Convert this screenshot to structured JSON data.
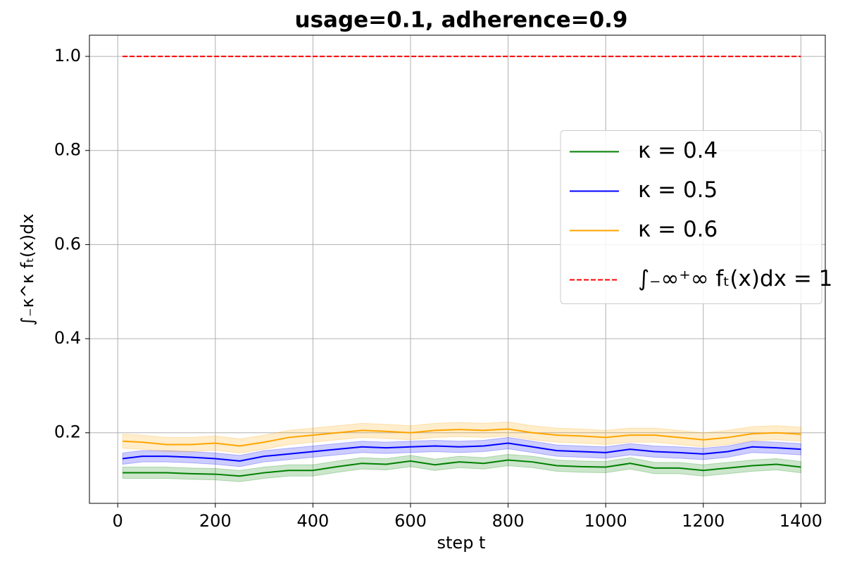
{
  "chart_data": {
    "type": "line",
    "title": "usage=0.1, adherence=0.9",
    "xlabel": "step t",
    "ylabel": "∫₋κ^κ fₜ(x)dx",
    "x": [
      10,
      50,
      100,
      150,
      200,
      250,
      300,
      350,
      400,
      450,
      500,
      550,
      600,
      650,
      700,
      750,
      800,
      850,
      900,
      950,
      1000,
      1050,
      1100,
      1150,
      1200,
      1250,
      1300,
      1350,
      1400
    ],
    "series": [
      {
        "name": "κ = 0.4",
        "color": "green",
        "values": [
          0.115,
          0.115,
          0.115,
          0.113,
          0.112,
          0.108,
          0.115,
          0.12,
          0.12,
          0.128,
          0.135,
          0.133,
          0.14,
          0.132,
          0.138,
          0.135,
          0.142,
          0.138,
          0.13,
          0.128,
          0.127,
          0.135,
          0.125,
          0.125,
          0.12,
          0.125,
          0.13,
          0.133,
          0.127
        ],
        "upper": [
          0.127,
          0.127,
          0.127,
          0.125,
          0.124,
          0.12,
          0.127,
          0.132,
          0.132,
          0.14,
          0.147,
          0.145,
          0.152,
          0.144,
          0.15,
          0.147,
          0.154,
          0.15,
          0.142,
          0.14,
          0.139,
          0.147,
          0.137,
          0.137,
          0.132,
          0.137,
          0.142,
          0.145,
          0.139
        ],
        "lower": [
          0.103,
          0.103,
          0.103,
          0.101,
          0.1,
          0.096,
          0.103,
          0.108,
          0.108,
          0.116,
          0.123,
          0.121,
          0.128,
          0.12,
          0.126,
          0.123,
          0.13,
          0.126,
          0.118,
          0.116,
          0.115,
          0.123,
          0.113,
          0.113,
          0.108,
          0.113,
          0.118,
          0.121,
          0.115
        ]
      },
      {
        "name": "κ = 0.5",
        "color": "blue",
        "values": [
          0.145,
          0.15,
          0.15,
          0.148,
          0.145,
          0.14,
          0.15,
          0.155,
          0.16,
          0.165,
          0.17,
          0.168,
          0.17,
          0.172,
          0.17,
          0.172,
          0.178,
          0.17,
          0.162,
          0.16,
          0.158,
          0.165,
          0.16,
          0.158,
          0.155,
          0.16,
          0.17,
          0.168,
          0.165
        ],
        "upper": [
          0.157,
          0.162,
          0.162,
          0.16,
          0.157,
          0.152,
          0.162,
          0.167,
          0.172,
          0.177,
          0.182,
          0.18,
          0.182,
          0.184,
          0.182,
          0.184,
          0.19,
          0.182,
          0.174,
          0.172,
          0.17,
          0.177,
          0.172,
          0.17,
          0.167,
          0.172,
          0.182,
          0.18,
          0.177
        ],
        "lower": [
          0.133,
          0.138,
          0.138,
          0.136,
          0.133,
          0.128,
          0.138,
          0.143,
          0.148,
          0.153,
          0.158,
          0.156,
          0.158,
          0.16,
          0.158,
          0.16,
          0.166,
          0.158,
          0.15,
          0.148,
          0.146,
          0.153,
          0.148,
          0.146,
          0.143,
          0.148,
          0.158,
          0.156,
          0.153
        ]
      },
      {
        "name": "κ = 0.6",
        "color": "orange",
        "values": [
          0.182,
          0.18,
          0.175,
          0.175,
          0.178,
          0.172,
          0.18,
          0.19,
          0.195,
          0.2,
          0.205,
          0.203,
          0.2,
          0.205,
          0.207,
          0.205,
          0.208,
          0.2,
          0.195,
          0.193,
          0.19,
          0.195,
          0.195,
          0.19,
          0.185,
          0.19,
          0.198,
          0.2,
          0.197
        ],
        "upper": [
          0.197,
          0.195,
          0.19,
          0.19,
          0.193,
          0.187,
          0.195,
          0.205,
          0.21,
          0.215,
          0.22,
          0.218,
          0.215,
          0.22,
          0.222,
          0.22,
          0.223,
          0.215,
          0.21,
          0.208,
          0.205,
          0.21,
          0.21,
          0.205,
          0.2,
          0.205,
          0.213,
          0.215,
          0.212
        ],
        "lower": [
          0.167,
          0.165,
          0.16,
          0.16,
          0.163,
          0.157,
          0.165,
          0.175,
          0.18,
          0.185,
          0.19,
          0.188,
          0.185,
          0.19,
          0.192,
          0.19,
          0.193,
          0.185,
          0.18,
          0.178,
          0.175,
          0.18,
          0.18,
          0.175,
          0.17,
          0.175,
          0.183,
          0.185,
          0.182
        ]
      },
      {
        "name": "∫₋∞⁺∞ fₜ(x)dx = 1",
        "color": "red",
        "linestyle": "dashed",
        "x": [
          10,
          1400
        ],
        "values": [
          1,
          1
        ]
      }
    ],
    "xlim": [
      -58,
      1450
    ],
    "ylim": [
      0.05,
      1.045
    ],
    "xticks": [
      0,
      200,
      400,
      600,
      800,
      1000,
      1200,
      1400
    ],
    "yticks": [
      0.2,
      0.4,
      0.6,
      0.8,
      {
        "value": 1,
        "label": "1.0"
      }
    ],
    "grid": true,
    "legend": "center right"
  }
}
